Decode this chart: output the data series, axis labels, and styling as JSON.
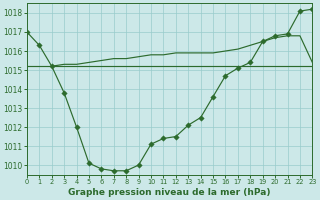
{
  "background_color": "#cce8e8",
  "grid_color": "#99cccc",
  "line_color": "#2d6b2d",
  "title": "Graphe pression niveau de la mer (hPa)",
  "title_fontsize": 6.5,
  "xlim": [
    0,
    23
  ],
  "ylim": [
    1009.5,
    1018.5
  ],
  "yticks": [
    1010,
    1011,
    1012,
    1013,
    1014,
    1015,
    1016,
    1017,
    1018
  ],
  "xticks": [
    0,
    1,
    2,
    3,
    4,
    5,
    6,
    7,
    8,
    9,
    10,
    11,
    12,
    13,
    14,
    15,
    16,
    17,
    18,
    19,
    20,
    21,
    22,
    23
  ],
  "curve_x": [
    0,
    1,
    2,
    3,
    4,
    5,
    6,
    7,
    8,
    9,
    10,
    11,
    12,
    13,
    14,
    15,
    16,
    17,
    18,
    19,
    20,
    21,
    22,
    23
  ],
  "curve_y": [
    1017.0,
    1016.3,
    1015.2,
    1013.8,
    1012.0,
    1010.1,
    1009.8,
    1009.7,
    1009.7,
    1010.0,
    1011.1,
    1011.4,
    1011.5,
    1012.1,
    1012.5,
    1013.6,
    1014.7,
    1015.1,
    1015.4,
    1016.5,
    1016.8,
    1016.9,
    1018.1,
    1018.2
  ],
  "flat_x": [
    0,
    1,
    2,
    3,
    4,
    5,
    6,
    7,
    8,
    9,
    10,
    11,
    12,
    13,
    14,
    15,
    16,
    17,
    18,
    19,
    20,
    21,
    22,
    23
  ],
  "flat_y": [
    1015.2,
    1015.2,
    1015.2,
    1015.2,
    1015.2,
    1015.2,
    1015.2,
    1015.2,
    1015.2,
    1015.2,
    1015.2,
    1015.2,
    1015.2,
    1015.2,
    1015.2,
    1015.2,
    1015.2,
    1015.2,
    1015.2,
    1015.2,
    1015.2,
    1015.2,
    1015.2,
    1015.2
  ],
  "slope_x": [
    2,
    3,
    4,
    5,
    6,
    7,
    8,
    9,
    10,
    11,
    12,
    13,
    14,
    15,
    16,
    17,
    18,
    19,
    20,
    21,
    22,
    23
  ],
  "slope_y": [
    1015.2,
    1015.3,
    1015.3,
    1015.4,
    1015.5,
    1015.6,
    1015.6,
    1015.7,
    1015.8,
    1015.8,
    1015.9,
    1015.9,
    1015.9,
    1015.9,
    1016.0,
    1016.1,
    1016.3,
    1016.5,
    1016.7,
    1016.8,
    1016.8,
    1015.4
  ]
}
